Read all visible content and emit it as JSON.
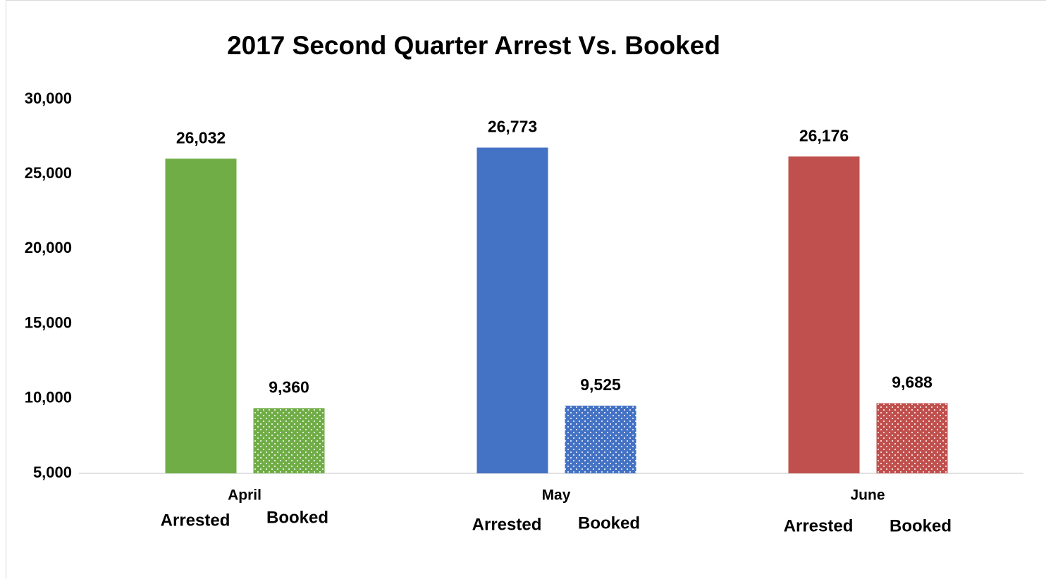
{
  "chart_data": {
    "type": "bar",
    "title": "2017 Second Quarter Arrest Vs. Booked",
    "categories": [
      "April",
      "May",
      "June"
    ],
    "colors": [
      "#70ad47",
      "#4472c4",
      "#c0504d"
    ],
    "series": [
      {
        "name": "Arrested",
        "values": [
          26032,
          26773,
          26176
        ],
        "value_labels": [
          "26,032",
          "26,773",
          "26,176"
        ]
      },
      {
        "name": "Booked",
        "values": [
          9360,
          9525,
          9688
        ],
        "value_labels": [
          "9,360",
          "9,525",
          "9,688"
        ]
      }
    ],
    "ylim": [
      5000,
      30000
    ],
    "yticks": [
      {
        "value": 5000,
        "label": "5,000"
      },
      {
        "value": 10000,
        "label": "10,000"
      },
      {
        "value": 15000,
        "label": "15,000"
      },
      {
        "value": 20000,
        "label": "20,000"
      },
      {
        "value": 25000,
        "label": "25,000"
      },
      {
        "value": 30000,
        "label": "30,000"
      }
    ]
  }
}
